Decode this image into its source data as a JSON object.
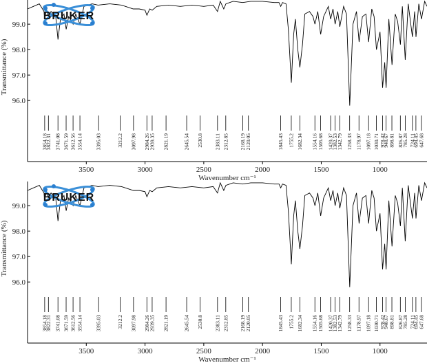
{
  "chart_data": [
    {
      "type": "line",
      "logo": "BRUKER",
      "y_label": "Transmittance (%)",
      "x_label": "Wavenumber cm⁻¹",
      "xlim": [
        4000,
        600
      ],
      "xticks": [
        3500,
        3000,
        2500,
        2000,
        1500,
        1000
      ],
      "ylim": [
        93.6,
        99.95
      ],
      "yticks": [
        {
          "value": 96,
          "label": "96.0"
        },
        {
          "value": 97,
          "label": "97.0"
        },
        {
          "value": 98,
          "label": "98.0"
        },
        {
          "value": 99,
          "label": "99.0"
        }
      ],
      "color": "#000000",
      "x": [
        4000,
        3950,
        3900,
        3860,
        3854,
        3840,
        3822,
        3800,
        3760,
        3741,
        3720,
        3690,
        3671,
        3650,
        3612,
        3590,
        3554,
        3520,
        3450,
        3400,
        3300,
        3200,
        3100,
        3050,
        3000,
        2984,
        2960,
        2939,
        2900,
        2800,
        2700,
        2600,
        2500,
        2420,
        2383,
        2360,
        2330,
        2312,
        2250,
        2168,
        2100,
        2000,
        1900,
        1860,
        1845,
        1830,
        1800,
        1780,
        1755,
        1735,
        1720,
        1700,
        1682,
        1660,
        1640,
        1600,
        1570,
        1554,
        1530,
        1505,
        1480,
        1440,
        1420,
        1400,
        1382,
        1360,
        1342,
        1310,
        1285,
        1258,
        1230,
        1200,
        1178,
        1150,
        1120,
        1097,
        1070,
        1050,
        1030,
        1000,
        978,
        960,
        948,
        925,
        898,
        870,
        850,
        826,
        810,
        785,
        760,
        724,
        705,
        694,
        670,
        647,
        620,
        600
      ],
      "values": [
        99.6,
        99.7,
        99.8,
        99.5,
        99.2,
        99.6,
        99.3,
        99.5,
        99.3,
        98.4,
        99.2,
        99.4,
        98.8,
        99.3,
        99.0,
        99.4,
        99.0,
        99.7,
        99.8,
        99.75,
        99.8,
        99.75,
        99.6,
        99.6,
        99.55,
        99.35,
        99.6,
        99.55,
        99.7,
        99.75,
        99.7,
        99.75,
        99.7,
        99.75,
        99.5,
        99.9,
        99.6,
        99.8,
        99.9,
        99.85,
        99.9,
        99.9,
        99.85,
        99.85,
        99.7,
        99.85,
        99.8,
        98.8,
        96.7,
        98.6,
        99.2,
        98.0,
        97.3,
        98.2,
        99.4,
        99.5,
        99.3,
        99.0,
        99.5,
        98.6,
        99.3,
        99.7,
        99.2,
        99.6,
        99.0,
        99.5,
        98.9,
        99.7,
        99.4,
        95.8,
        99.0,
        99.5,
        98.3,
        99.3,
        99.4,
        98.3,
        99.6,
        99.3,
        98.0,
        98.7,
        96.5,
        97.5,
        96.5,
        99.2,
        97.4,
        99.4,
        99.1,
        98.2,
        99.7,
        97.6,
        99.8,
        98.5,
        99.5,
        98.5,
        99.8,
        99.2,
        99.9,
        99.7
      ],
      "peaks": [
        3854.18,
        3822.31,
        3741.08,
        3671.59,
        3612.56,
        3554.14,
        3395.03,
        3212.2,
        3097.98,
        2984.26,
        2939.35,
        2821.19,
        2645.54,
        2530.8,
        2383.11,
        2312.85,
        2168.19,
        2120.05,
        1845.43,
        1755.2,
        1682.34,
        1554.16,
        1505.68,
        1420.37,
        1382.53,
        1342.79,
        1258.33,
        1178.97,
        1097.18,
        1030.71,
        978.42,
        948.67,
        898.81,
        826.87,
        785.28,
        724.11,
        694.45,
        647.68
      ]
    },
    {
      "type": "line",
      "logo": "BRUKER",
      "y_label": "Transmittance (%)",
      "x_label": "Wavenumber cm⁻¹",
      "xlim": [
        4000,
        600
      ],
      "xticks": [
        3500,
        3000,
        2500,
        2000,
        1500,
        1000
      ],
      "ylim": [
        93.6,
        99.95
      ],
      "yticks": [
        {
          "value": 96,
          "label": "96.0"
        },
        {
          "value": 97,
          "label": "97.0"
        },
        {
          "value": 98,
          "label": "98.0"
        },
        {
          "value": 99,
          "label": "99.0"
        }
      ],
      "color": "#000000",
      "x": [
        4000,
        3950,
        3900,
        3860,
        3854,
        3840,
        3822,
        3800,
        3760,
        3741,
        3720,
        3690,
        3671,
        3650,
        3612,
        3590,
        3554,
        3520,
        3450,
        3400,
        3300,
        3200,
        3100,
        3050,
        3000,
        2984,
        2960,
        2939,
        2900,
        2800,
        2700,
        2600,
        2500,
        2420,
        2383,
        2360,
        2330,
        2312,
        2250,
        2168,
        2100,
        2000,
        1900,
        1860,
        1845,
        1830,
        1800,
        1780,
        1755,
        1735,
        1720,
        1700,
        1682,
        1660,
        1640,
        1600,
        1570,
        1554,
        1530,
        1505,
        1480,
        1440,
        1420,
        1400,
        1382,
        1360,
        1342,
        1310,
        1285,
        1258,
        1230,
        1200,
        1178,
        1150,
        1120,
        1097,
        1070,
        1050,
        1030,
        1000,
        978,
        960,
        948,
        925,
        898,
        870,
        850,
        826,
        810,
        785,
        760,
        724,
        705,
        694,
        670,
        647,
        620,
        600
      ],
      "values": [
        99.6,
        99.7,
        99.8,
        99.5,
        99.2,
        99.6,
        99.3,
        99.5,
        99.3,
        98.4,
        99.2,
        99.4,
        98.8,
        99.3,
        99.0,
        99.4,
        99.0,
        99.7,
        99.8,
        99.75,
        99.8,
        99.75,
        99.6,
        99.6,
        99.55,
        99.35,
        99.6,
        99.55,
        99.7,
        99.75,
        99.7,
        99.75,
        99.7,
        99.75,
        99.5,
        99.9,
        99.6,
        99.8,
        99.9,
        99.85,
        99.9,
        99.9,
        99.85,
        99.85,
        99.7,
        99.85,
        99.8,
        98.8,
        96.7,
        98.6,
        99.2,
        98.0,
        97.3,
        98.2,
        99.4,
        99.5,
        99.3,
        99.0,
        99.5,
        98.6,
        99.3,
        99.7,
        99.2,
        99.6,
        99.0,
        99.5,
        98.9,
        99.7,
        99.4,
        95.8,
        99.0,
        99.5,
        98.3,
        99.3,
        99.4,
        98.3,
        99.6,
        99.3,
        98.0,
        98.7,
        96.5,
        97.5,
        96.5,
        99.2,
        97.4,
        99.4,
        99.1,
        98.2,
        99.7,
        97.6,
        99.8,
        98.5,
        99.5,
        98.5,
        99.8,
        99.2,
        99.9,
        99.7
      ],
      "peaks": [
        3854.18,
        3822.31,
        3741.08,
        3671.59,
        3612.56,
        3554.14,
        3395.03,
        3212.2,
        3097.98,
        2984.26,
        2939.35,
        2821.19,
        2645.54,
        2530.8,
        2383.11,
        2312.85,
        2168.19,
        2120.05,
        1845.43,
        1755.2,
        1682.34,
        1554.16,
        1505.68,
        1420.37,
        1382.53,
        1342.79,
        1258.33,
        1178.97,
        1097.18,
        1030.71,
        978.42,
        948.67,
        898.81,
        826.87,
        785.28,
        724.11,
        694.45,
        647.68
      ]
    }
  ]
}
